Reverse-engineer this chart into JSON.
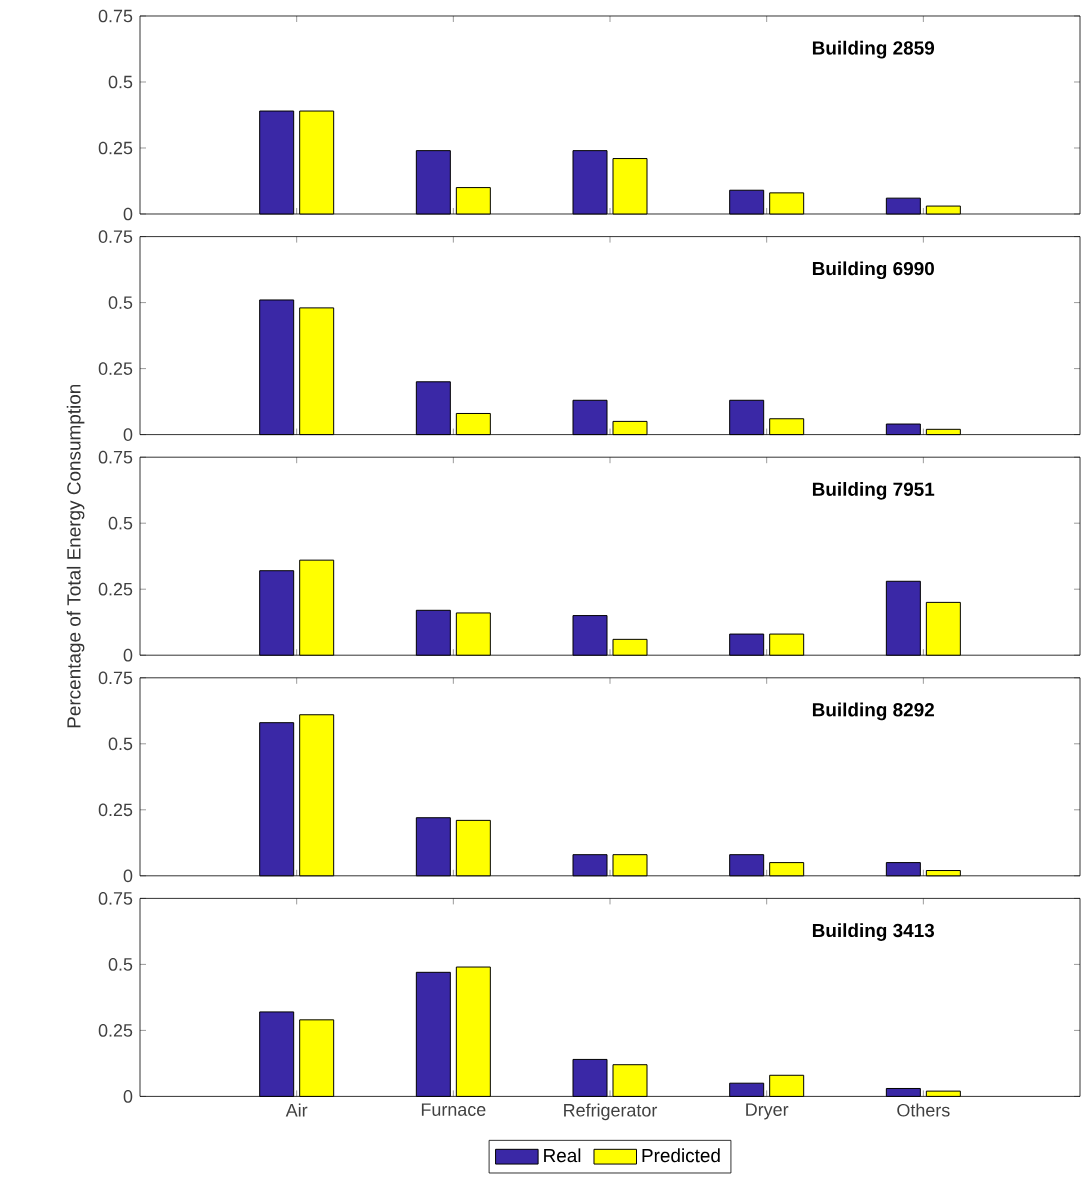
{
  "chart_data": [
    {
      "type": "bar",
      "title": "Building 2859",
      "categories": [
        null,
        null,
        null,
        null,
        null
      ],
      "ylim": [
        0,
        0.75
      ],
      "yticks": [
        0,
        0.25,
        0.5,
        0.75
      ],
      "tick_labels": "y",
      "series": [
        {
          "color": "#3a28a6",
          "values": [
            0.39,
            0.24,
            0.24,
            0.09,
            0.06
          ]
        },
        {
          "color": "#ffff00",
          "values": [
            0.39,
            0.1,
            0.21,
            0.08,
            0.03
          ]
        }
      ]
    },
    {
      "type": "bar",
      "title": "Building 6990",
      "categories": [
        null,
        null,
        null,
        null,
        null
      ],
      "ylim": [
        0,
        0.75
      ],
      "yticks": [
        0,
        0.25,
        0.5,
        0.75
      ],
      "tick_labels": "y",
      "series": [
        {
          "color": "#3a28a6",
          "values": [
            0.51,
            0.2,
            0.13,
            0.13,
            0.04
          ]
        },
        {
          "color": "#ffff00",
          "values": [
            0.48,
            0.08,
            0.05,
            0.06,
            0.02
          ]
        }
      ]
    },
    {
      "type": "bar",
      "title": "Building 7951",
      "ylabel": "Percentage of Total Energy Consumption",
      "categories": [
        null,
        null,
        null,
        null,
        null
      ],
      "ylim": [
        0,
        0.75
      ],
      "yticks": [
        0,
        0.25,
        0.5,
        0.75
      ],
      "tick_labels": "y",
      "series": [
        {
          "color": "#3a28a6",
          "values": [
            0.32,
            0.17,
            0.15,
            0.08,
            0.28
          ]
        },
        {
          "color": "#ffff00",
          "values": [
            0.36,
            0.16,
            0.06,
            0.08,
            0.2
          ]
        }
      ]
    },
    {
      "type": "bar",
      "title": "Building 8292",
      "categories": [
        null,
        null,
        null,
        null,
        null
      ],
      "ylim": [
        0,
        0.75
      ],
      "yticks": [
        0,
        0.25,
        0.5,
        0.75
      ],
      "tick_labels": "y",
      "series": [
        {
          "color": "#3a28a6",
          "values": [
            0.58,
            0.22,
            0.08,
            0.08,
            0.05
          ]
        },
        {
          "color": "#ffff00",
          "values": [
            0.61,
            0.21,
            0.08,
            0.05,
            0.02
          ]
        }
      ]
    },
    {
      "type": "bar",
      "title": "Building 3413",
      "categories": [
        "Air",
        "Furnace",
        "Refrigerator",
        "Dryer",
        "Others"
      ],
      "ylim": [
        0,
        0.75
      ],
      "yticks": [
        0,
        0.25,
        0.5,
        0.75
      ],
      "legend": "bottom",
      "series": [
        {
          "name": "Real",
          "color": "#3a28a6",
          "values": [
            0.32,
            0.47,
            0.14,
            0.05,
            0.03
          ]
        },
        {
          "name": "Predicted",
          "color": "#ffff00",
          "values": [
            0.29,
            0.49,
            0.12,
            0.08,
            0.02
          ]
        }
      ]
    }
  ]
}
